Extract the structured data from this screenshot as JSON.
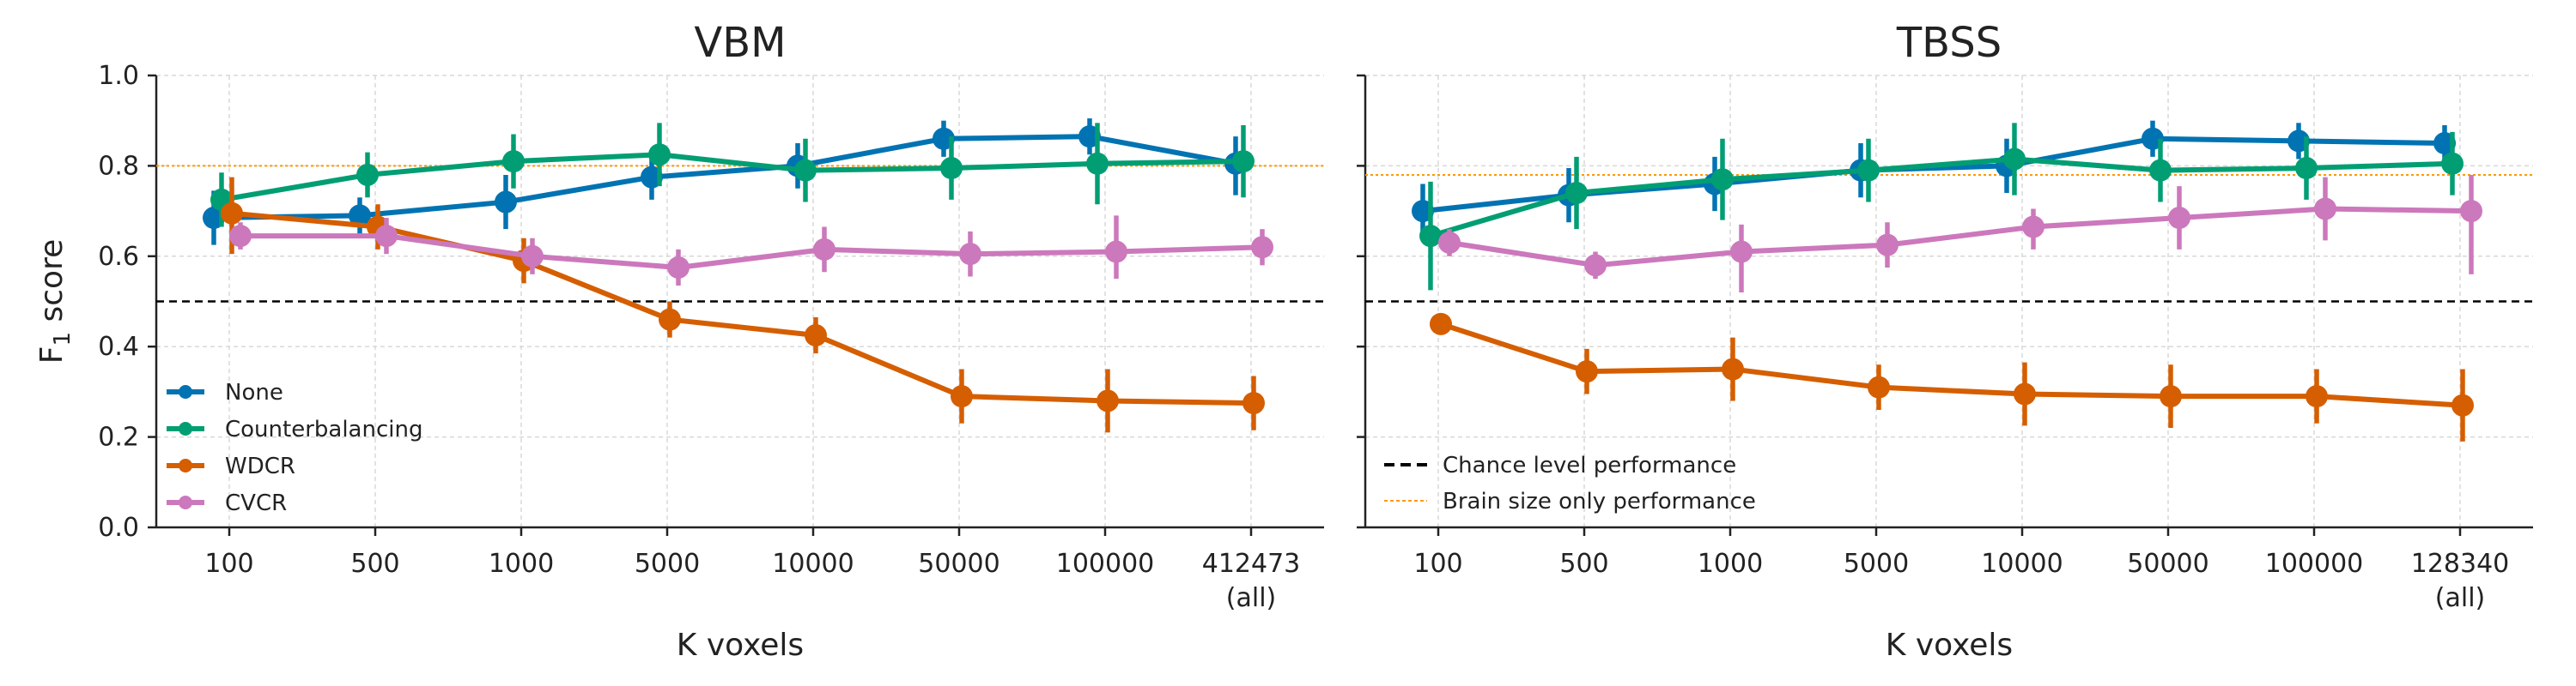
{
  "chart_data": [
    {
      "type": "line",
      "title": "VBM",
      "xlabel": "K voxels",
      "ylabel": "F",
      "ylabel_sub": "1",
      "ylabel_rest": " score",
      "categories": [
        "100",
        "500",
        "1000",
        "5000",
        "10000",
        "50000",
        "100000",
        "412473"
      ],
      "category_sublabels": [
        "",
        "",
        "",
        "",
        "",
        "",
        "",
        "(all)"
      ],
      "ylim": [
        0,
        1
      ],
      "yticks": [
        "0.0",
        "0.2",
        "0.4",
        "0.6",
        "0.8",
        "1.0"
      ],
      "grid": true,
      "reference_lines": {
        "chance": 0.5,
        "brain_size": 0.8
      },
      "legend": {
        "placement": "lower-left",
        "entries": [
          "None",
          "Counterbalancing",
          "WDCR",
          "CVCR"
        ]
      },
      "series": [
        {
          "name": "None",
          "color": "#0173b2",
          "values": [
            0.685,
            0.69,
            0.72,
            0.775,
            0.8,
            0.86,
            0.865,
            0.805
          ],
          "err_low": [
            0.06,
            0.04,
            0.06,
            0.05,
            0.05,
            0.04,
            0.04,
            0.07
          ],
          "err_high": [
            0.06,
            0.04,
            0.06,
            0.05,
            0.05,
            0.04,
            0.04,
            0.06
          ]
        },
        {
          "name": "Counterbalancing",
          "color": "#029e73",
          "values": [
            0.725,
            0.78,
            0.81,
            0.825,
            0.79,
            0.795,
            0.805,
            0.81
          ],
          "err_low": [
            0.06,
            0.05,
            0.06,
            0.07,
            0.07,
            0.07,
            0.09,
            0.08
          ],
          "err_high": [
            0.06,
            0.05,
            0.06,
            0.07,
            0.07,
            0.07,
            0.09,
            0.08
          ]
        },
        {
          "name": "WDCR",
          "color": "#d55e00",
          "values": [
            0.695,
            0.665,
            0.59,
            0.46,
            0.425,
            0.29,
            0.28,
            0.275
          ],
          "err_low": [
            0.09,
            0.05,
            0.05,
            0.04,
            0.04,
            0.06,
            0.07,
            0.06
          ],
          "err_high": [
            0.08,
            0.05,
            0.05,
            0.04,
            0.04,
            0.06,
            0.07,
            0.06
          ]
        },
        {
          "name": "CVCR",
          "color": "#cc78bc",
          "values": [
            0.645,
            0.645,
            0.6,
            0.575,
            0.615,
            0.605,
            0.61,
            0.62
          ],
          "err_low": [
            0.03,
            0.04,
            0.04,
            0.04,
            0.05,
            0.05,
            0.06,
            0.04
          ],
          "err_high": [
            0.03,
            0.04,
            0.04,
            0.04,
            0.05,
            0.05,
            0.08,
            0.04
          ]
        }
      ]
    },
    {
      "type": "line",
      "title": "TBSS",
      "xlabel": "K voxels",
      "categories": [
        "100",
        "500",
        "1000",
        "5000",
        "10000",
        "50000",
        "100000",
        "128340"
      ],
      "category_sublabels": [
        "",
        "",
        "",
        "",
        "",
        "",
        "",
        "(all)"
      ],
      "ylim": [
        0,
        1
      ],
      "grid": true,
      "reference_lines": {
        "chance": 0.5,
        "brain_size": 0.78
      },
      "legend": {
        "placement": "lower-left",
        "entries": [
          "Chance level performance",
          "Brain size only performance"
        ]
      },
      "series": [
        {
          "name": "None",
          "color": "#0173b2",
          "values": [
            0.7,
            0.735,
            0.76,
            0.79,
            0.8,
            0.86,
            0.855,
            0.85
          ],
          "err_low": [
            0.06,
            0.06,
            0.06,
            0.06,
            0.06,
            0.04,
            0.04,
            0.04
          ],
          "err_high": [
            0.06,
            0.06,
            0.06,
            0.06,
            0.06,
            0.04,
            0.04,
            0.04
          ]
        },
        {
          "name": "Counterbalancing",
          "color": "#029e73",
          "values": [
            0.645,
            0.74,
            0.77,
            0.79,
            0.815,
            0.79,
            0.795,
            0.805
          ],
          "err_low": [
            0.12,
            0.08,
            0.09,
            0.07,
            0.08,
            0.07,
            0.07,
            0.07
          ],
          "err_high": [
            0.12,
            0.08,
            0.09,
            0.07,
            0.08,
            0.07,
            0.07,
            0.07
          ]
        },
        {
          "name": "WDCR",
          "color": "#d55e00",
          "values": [
            0.45,
            0.345,
            0.35,
            0.31,
            0.295,
            0.29,
            0.29,
            0.27
          ],
          "err_low": [
            0.02,
            0.05,
            0.07,
            0.05,
            0.07,
            0.07,
            0.06,
            0.08
          ],
          "err_high": [
            0.02,
            0.05,
            0.07,
            0.05,
            0.07,
            0.07,
            0.06,
            0.08
          ]
        },
        {
          "name": "CVCR",
          "color": "#cc78bc",
          "values": [
            0.63,
            0.58,
            0.61,
            0.625,
            0.665,
            0.685,
            0.705,
            0.7
          ],
          "err_low": [
            0.03,
            0.03,
            0.09,
            0.05,
            0.05,
            0.07,
            0.07,
            0.14
          ],
          "err_high": [
            0.03,
            0.03,
            0.06,
            0.05,
            0.04,
            0.07,
            0.07,
            0.08
          ]
        }
      ]
    }
  ],
  "colors": {
    "none": "#0173b2",
    "counterbalancing": "#029e73",
    "wdcr": "#d55e00",
    "cvcr": "#cc78bc",
    "chance_line": "#000000",
    "brain_size_line": "#ff9900",
    "grid": "#d8d8d8",
    "axis": "#222222"
  }
}
